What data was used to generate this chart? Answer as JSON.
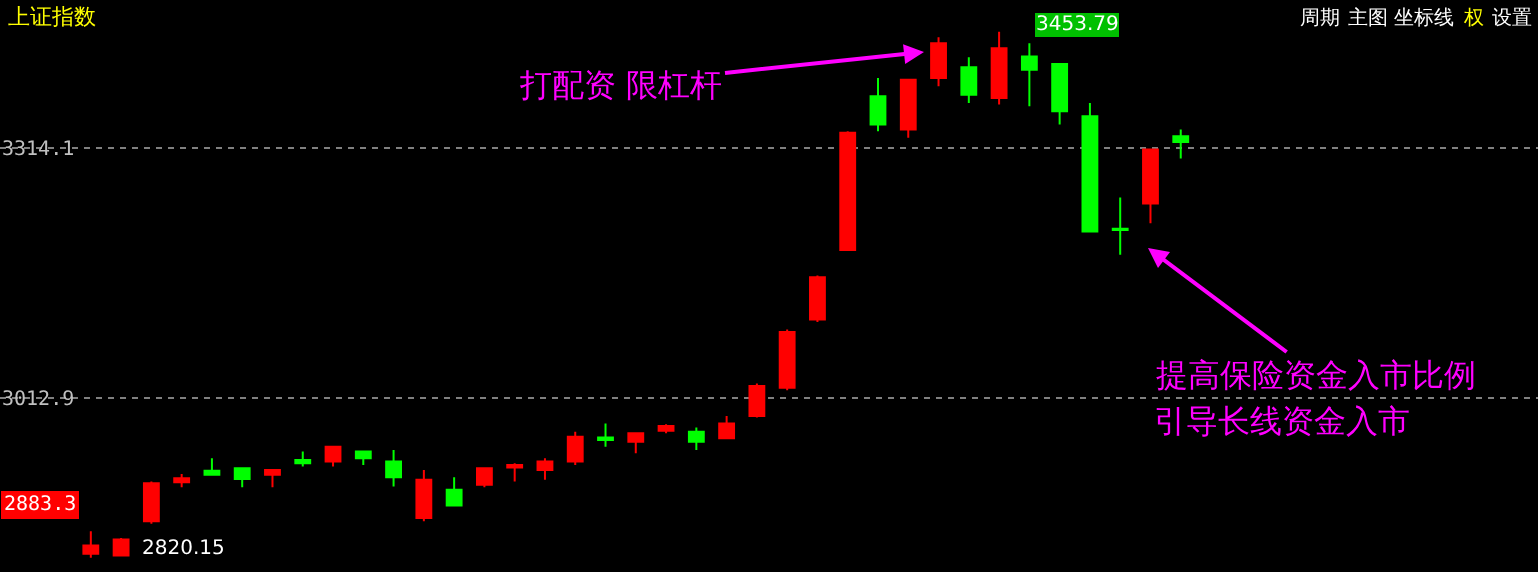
{
  "chart_data": {
    "type": "candlestick",
    "title": "上证指数",
    "categories": [
      null,
      null,
      null,
      null,
      null,
      null,
      null,
      null,
      null,
      null,
      null,
      null,
      null,
      null,
      null,
      null,
      null,
      null,
      null,
      null,
      null,
      null,
      null,
      null,
      null,
      null,
      null,
      null,
      null,
      null,
      null,
      null,
      null,
      null,
      null,
      null,
      null
    ],
    "ohlc": [
      [
        2825,
        2852,
        2820.15,
        2835
      ],
      [
        2823,
        2844,
        2822,
        2842
      ],
      [
        2864,
        2912,
        2861,
        2910
      ],
      [
        2911,
        2921,
        2905,
        2916
      ],
      [
        2925,
        2940,
        2919,
        2920
      ],
      [
        2928,
        2929,
        2905,
        2915
      ],
      [
        2920,
        2927,
        2905,
        2926
      ],
      [
        2938,
        2948,
        2930,
        2934
      ],
      [
        2936,
        2955,
        2930,
        2954
      ],
      [
        2948,
        2949,
        2932,
        2940
      ],
      [
        2936,
        2950,
        2906,
        2917
      ],
      [
        2868,
        2926,
        2864,
        2914
      ],
      [
        2902,
        2917,
        2883,
        2883
      ],
      [
        2908,
        2928,
        2905,
        2928
      ],
      [
        2929,
        2934,
        2912,
        2932
      ],
      [
        2926,
        2940,
        2914,
        2936
      ],
      [
        2936,
        2972,
        2932,
        2966
      ],
      [
        2965,
        2982,
        2954,
        2962
      ],
      [
        2960,
        2970,
        2946,
        2970
      ],
      [
        2973,
        2981,
        2970,
        2979
      ],
      [
        2972,
        2977,
        2950,
        2960
      ],
      [
        2964,
        2991,
        2964,
        2982
      ],
      [
        2991,
        3030,
        2989,
        3027
      ],
      [
        3025,
        3095,
        3022,
        3092
      ],
      [
        3107,
        3160,
        3104,
        3158
      ],
      [
        3191,
        3334,
        3190,
        3332
      ],
      [
        3376,
        3398,
        3334,
        3342
      ],
      [
        3336,
        3397,
        3326,
        3396
      ],
      [
        3398,
        3447,
        3388,
        3440
      ],
      [
        3411,
        3423,
        3368,
        3378
      ],
      [
        3374,
        3453.79,
        3366,
        3434
      ],
      [
        3424,
        3440,
        3364,
        3408
      ],
      [
        3415,
        3416,
        3342,
        3358
      ],
      [
        3352,
        3368,
        3212,
        3213
      ],
      [
        3216.5,
        3254,
        3185,
        3215
      ],
      [
        3247,
        3313,
        3223,
        3312
      ],
      [
        3328,
        3336,
        3301,
        3321
      ]
    ],
    "colors": [
      "#ff0000",
      "#ff0000",
      "#ff0000",
      "#ff0000",
      "#00ff00",
      "#00ff00",
      "#ff0000",
      "#00ff00",
      "#ff0000",
      "#00ff00",
      "#00ff00",
      "#ff0000",
      "#00ff00",
      "#ff0000",
      "#ff0000",
      "#ff0000",
      "#ff0000",
      "#00ff00",
      "#ff0000",
      "#ff0000",
      "#00ff00",
      "#ff0000",
      "#ff0000",
      "#ff0000",
      "#ff0000",
      "#ff0000",
      "#00ff00",
      "#ff0000",
      "#ff0000",
      "#00ff00",
      "#ff0000",
      "#00ff00",
      "#00ff00",
      "#00ff00",
      "#00ff00",
      "#ff0000",
      "#00ff00"
    ],
    "ylim": [
      2803,
      3492
    ],
    "yticks": [
      3314.1,
      3012.9
    ],
    "grid": "y",
    "tick_labels": "y",
    "annotations": [
      {
        "text": "2883.3",
        "y": 2883.3
      },
      "2820.15",
      "3453.79",
      "打配资 限杠杆",
      "提高保险资金入市比例",
      "引导长线资金入市",
      "周期",
      "主图",
      "坐标线",
      "权",
      "设置"
    ]
  }
}
